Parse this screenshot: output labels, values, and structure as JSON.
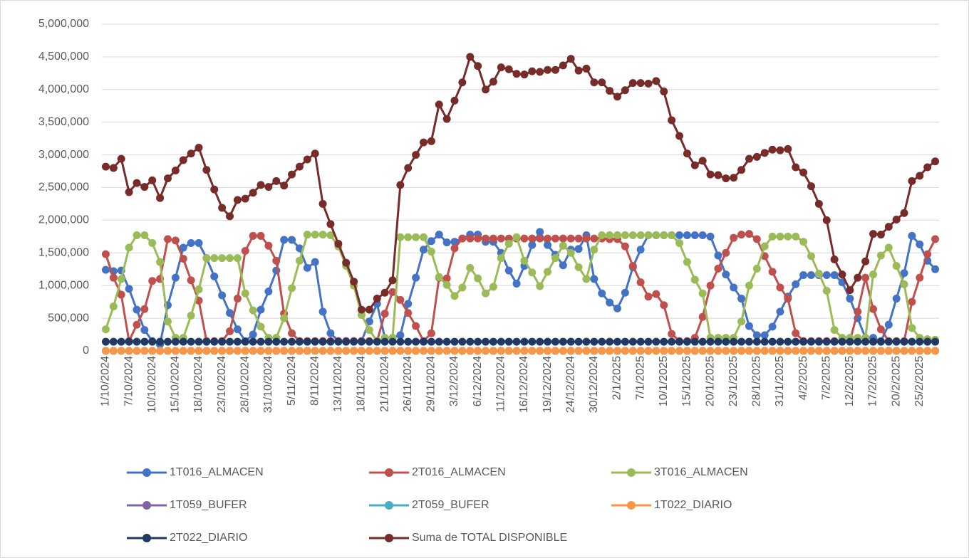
{
  "chart_data": {
    "type": "line",
    "categories": [
      "1/10/2024",
      null,
      null,
      "7/10/2024",
      null,
      null,
      "10/10/2024",
      null,
      null,
      "15/10/2024",
      null,
      null,
      "18/10/2024",
      null,
      null,
      "23/10/2024",
      null,
      null,
      "28/10/2024",
      null,
      null,
      "31/10/2024",
      null,
      null,
      "5/11/2024",
      null,
      null,
      "8/11/2024",
      null,
      null,
      "13/11/2024",
      null,
      null,
      "18/11/2024",
      null,
      null,
      "21/11/2024",
      null,
      null,
      "26/11/2024",
      null,
      null,
      "29/11/2024",
      null,
      null,
      "3/12/2024",
      null,
      null,
      "6/12/2024",
      null,
      null,
      "11/12/2024",
      null,
      null,
      "16/12/2024",
      null,
      null,
      "19/12/2024",
      null,
      null,
      "24/12/2024",
      null,
      null,
      "30/12/2024",
      null,
      null,
      "2/1/2025",
      null,
      null,
      "7/1/2025",
      null,
      null,
      "10/1/2025",
      null,
      null,
      "15/1/2025",
      null,
      null,
      "20/1/2025",
      null,
      null,
      "23/1/2025",
      null,
      null,
      "28/1/2025",
      null,
      null,
      "31/1/2025",
      null,
      null,
      "4/2/2025",
      null,
      null,
      "7/2/2025",
      null,
      null,
      "12/2/2025",
      null,
      null,
      "17/2/2025",
      null,
      null,
      "20/2/2025",
      null,
      null,
      "25/2/2025",
      null,
      null
    ],
    "series": [
      {
        "name": "1T016_ALMACEN",
        "color": "#4472c4",
        "values": [
          1240000,
          1220000,
          1230000,
          950000,
          630000,
          320000,
          150000,
          100000,
          700000,
          1120000,
          1580000,
          1650000,
          1650000,
          1420000,
          1140000,
          850000,
          580000,
          330000,
          150000,
          250000,
          630000,
          910000,
          1230000,
          1700000,
          1700000,
          1570000,
          1270000,
          1360000,
          600000,
          270000,
          150000,
          150000,
          150000,
          150000,
          450000,
          720000,
          200000,
          200000,
          240000,
          720000,
          1120000,
          1550000,
          1680000,
          1780000,
          1660000,
          1670000,
          1720000,
          1780000,
          1780000,
          1670000,
          1670000,
          1500000,
          1230000,
          1030000,
          1300000,
          1620000,
          1820000,
          1620000,
          1470000,
          1310000,
          1550000,
          1560000,
          1770000,
          1100000,
          880000,
          740000,
          650000,
          890000,
          1280000,
          1550000,
          1770000,
          1770000,
          1770000,
          1770000,
          1770000,
          1770000,
          1770000,
          1770000,
          1750000,
          1460000,
          1170000,
          970000,
          800000,
          380000,
          240000,
          240000,
          370000,
          600000,
          830000,
          1020000,
          1160000,
          1160000,
          1160000,
          1160000,
          1160000,
          1050000,
          800000,
          500000,
          200000,
          200000,
          150000,
          400000,
          800000,
          1190000,
          1760000,
          1630000,
          1380000,
          1250000
        ]
      },
      {
        "name": "2T016_ALMACEN",
        "color": "#c0504d",
        "values": [
          1480000,
          1120000,
          860000,
          150000,
          400000,
          640000,
          1070000,
          1100000,
          1710000,
          1690000,
          1410000,
          1080000,
          770000,
          150000,
          150000,
          150000,
          300000,
          800000,
          1530000,
          1760000,
          1760000,
          1610000,
          1380000,
          570000,
          270000,
          150000,
          150000,
          150000,
          150000,
          150000,
          150000,
          150000,
          150000,
          150000,
          150000,
          150000,
          570000,
          900000,
          780000,
          580000,
          380000,
          150000,
          270000,
          1120000,
          1110000,
          1570000,
          1720000,
          1720000,
          1720000,
          1720000,
          1720000,
          1720000,
          1720000,
          1720000,
          1720000,
          1720000,
          1720000,
          1720000,
          1720000,
          1720000,
          1720000,
          1720000,
          1720000,
          1720000,
          1720000,
          1710000,
          1710000,
          1600000,
          1300000,
          1050000,
          830000,
          870000,
          700000,
          260000,
          150000,
          150000,
          200000,
          520000,
          1000000,
          1260000,
          1500000,
          1730000,
          1780000,
          1790000,
          1710000,
          1450000,
          1210000,
          970000,
          800000,
          270000,
          150000,
          150000,
          150000,
          150000,
          150000,
          150000,
          150000,
          600000,
          1120000,
          640000,
          330000,
          150000,
          150000,
          150000,
          750000,
          1120000,
          1480000,
          1710000
        ]
      },
      {
        "name": "3T016_ALMACEN",
        "color": "#9bbb59",
        "values": [
          330000,
          680000,
          1100000,
          1580000,
          1770000,
          1770000,
          1650000,
          1360000,
          450000,
          200000,
          200000,
          540000,
          940000,
          1420000,
          1420000,
          1420000,
          1420000,
          1420000,
          880000,
          620000,
          370000,
          200000,
          200000,
          500000,
          960000,
          1380000,
          1780000,
          1780000,
          1780000,
          1770000,
          1600000,
          1300000,
          1000000,
          550000,
          320000,
          150000,
          200000,
          200000,
          1740000,
          1740000,
          1740000,
          1740000,
          1520000,
          1130000,
          1010000,
          840000,
          970000,
          1270000,
          1110000,
          880000,
          980000,
          1420000,
          1640000,
          1740000,
          1380000,
          1200000,
          990000,
          1210000,
          1420000,
          1610000,
          1500000,
          1280000,
          1100000,
          1550000,
          1770000,
          1770000,
          1770000,
          1770000,
          1770000,
          1770000,
          1770000,
          1770000,
          1770000,
          1770000,
          1650000,
          1360000,
          1090000,
          880000,
          200000,
          200000,
          200000,
          200000,
          450000,
          1000000,
          1260000,
          1600000,
          1750000,
          1750000,
          1750000,
          1750000,
          1670000,
          1450000,
          1180000,
          920000,
          320000,
          200000,
          200000,
          200000,
          200000,
          1170000,
          1460000,
          1580000,
          1300000,
          1020000,
          350000,
          200000,
          180000,
          170000
        ]
      },
      {
        "name": "1T059_BUFER",
        "color": "#8064a2",
        "values": [
          0,
          0,
          0,
          0,
          0,
          0,
          0,
          0,
          0,
          0,
          0,
          0,
          0,
          0,
          0,
          0,
          0,
          0,
          0,
          0,
          0,
          0,
          0,
          0,
          0,
          0,
          0,
          0,
          0,
          0,
          0,
          0,
          0,
          0,
          0,
          0,
          0,
          0,
          0,
          0,
          0,
          0,
          0,
          0,
          0,
          0,
          0,
          0,
          0,
          0,
          0,
          0,
          0,
          0,
          0,
          0,
          0,
          0,
          0,
          0,
          0,
          0,
          0,
          0,
          0,
          0,
          0,
          0,
          0,
          0,
          0,
          0,
          0,
          0,
          0,
          0,
          0,
          0,
          0,
          0,
          0,
          0,
          0,
          0,
          0,
          0,
          0,
          0,
          0,
          0,
          0,
          0,
          0,
          0,
          0,
          0,
          0,
          0,
          0,
          0,
          0,
          0,
          0,
          0,
          0,
          0,
          0,
          0
        ]
      },
      {
        "name": "2T059_BUFER",
        "color": "#4bacc6",
        "values": [
          0,
          0,
          0,
          0,
          0,
          0,
          0,
          0,
          0,
          0,
          0,
          0,
          0,
          0,
          0,
          0,
          0,
          0,
          0,
          0,
          0,
          0,
          0,
          0,
          0,
          0,
          0,
          0,
          0,
          0,
          0,
          0,
          0,
          0,
          0,
          0,
          0,
          0,
          0,
          0,
          0,
          0,
          0,
          0,
          0,
          0,
          0,
          0,
          0,
          0,
          0,
          0,
          0,
          0,
          0,
          0,
          0,
          0,
          0,
          0,
          0,
          0,
          0,
          0,
          0,
          0,
          0,
          0,
          0,
          0,
          0,
          0,
          0,
          0,
          0,
          0,
          0,
          0,
          0,
          0,
          0,
          0,
          0,
          0,
          0,
          0,
          0,
          0,
          0,
          0,
          0,
          0,
          0,
          0,
          0,
          0,
          0,
          0,
          0,
          0,
          0,
          0,
          0,
          0,
          0,
          0,
          0,
          0
        ]
      },
      {
        "name": "2T022_DIARIO",
        "color": "#1f3864",
        "values": [
          140000,
          140000,
          140000,
          140000,
          140000,
          140000,
          140000,
          140000,
          140000,
          140000,
          140000,
          140000,
          140000,
          140000,
          140000,
          140000,
          140000,
          140000,
          140000,
          140000,
          140000,
          140000,
          140000,
          140000,
          140000,
          140000,
          140000,
          140000,
          140000,
          140000,
          140000,
          140000,
          140000,
          140000,
          140000,
          140000,
          140000,
          140000,
          140000,
          140000,
          140000,
          140000,
          140000,
          140000,
          140000,
          140000,
          140000,
          140000,
          140000,
          140000,
          140000,
          140000,
          140000,
          140000,
          140000,
          140000,
          140000,
          140000,
          140000,
          140000,
          140000,
          140000,
          140000,
          140000,
          140000,
          140000,
          140000,
          140000,
          140000,
          140000,
          140000,
          140000,
          140000,
          140000,
          140000,
          140000,
          140000,
          140000,
          140000,
          140000,
          140000,
          140000,
          140000,
          140000,
          140000,
          140000,
          140000,
          140000,
          140000,
          140000,
          140000,
          140000,
          140000,
          140000,
          140000,
          140000,
          140000,
          140000,
          140000,
          140000,
          140000,
          140000,
          140000,
          140000,
          140000,
          140000,
          140000,
          140000
        ]
      },
      {
        "name": "1T022_DIARIO",
        "color": "#f79646",
        "values": [
          0,
          0,
          0,
          0,
          0,
          0,
          0,
          0,
          0,
          0,
          0,
          0,
          0,
          0,
          0,
          0,
          0,
          0,
          0,
          0,
          0,
          0,
          0,
          0,
          0,
          0,
          0,
          0,
          0,
          0,
          0,
          0,
          0,
          0,
          0,
          0,
          0,
          0,
          0,
          0,
          0,
          0,
          0,
          0,
          0,
          0,
          0,
          0,
          0,
          0,
          0,
          0,
          0,
          0,
          0,
          0,
          0,
          0,
          0,
          0,
          0,
          0,
          0,
          0,
          0,
          0,
          0,
          0,
          0,
          0,
          0,
          0,
          0,
          0,
          0,
          0,
          0,
          0,
          0,
          0,
          0,
          0,
          0,
          0,
          0,
          0,
          0,
          0,
          0,
          0,
          0,
          0,
          0,
          0,
          0,
          0,
          0,
          0,
          0,
          0,
          0,
          0,
          0,
          0,
          0,
          0,
          0,
          0
        ]
      },
      {
        "name": "Suma de TOTAL DISPONIBLE",
        "color": "#772c2a",
        "values": [
          2820000,
          2800000,
          2940000,
          2430000,
          2570000,
          2510000,
          2610000,
          2340000,
          2640000,
          2760000,
          2920000,
          3020000,
          3110000,
          2770000,
          2470000,
          2190000,
          2060000,
          2310000,
          2330000,
          2420000,
          2540000,
          2510000,
          2600000,
          2530000,
          2700000,
          2820000,
          2930000,
          3020000,
          2250000,
          1940000,
          1640000,
          1350000,
          1060000,
          630000,
          630000,
          800000,
          890000,
          1080000,
          2540000,
          2800000,
          3000000,
          3190000,
          3210000,
          3770000,
          3550000,
          3830000,
          4110000,
          4500000,
          4360000,
          4000000,
          4120000,
          4340000,
          4310000,
          4240000,
          4230000,
          4280000,
          4270000,
          4300000,
          4300000,
          4370000,
          4470000,
          4290000,
          4320000,
          4110000,
          4110000,
          3980000,
          3890000,
          3990000,
          4100000,
          4100000,
          4090000,
          4130000,
          3970000,
          3530000,
          3290000,
          3020000,
          2840000,
          2910000,
          2700000,
          2690000,
          2640000,
          2650000,
          2770000,
          2940000,
          2970000,
          3030000,
          3080000,
          3070000,
          3090000,
          2810000,
          2730000,
          2520000,
          2250000,
          2000000,
          1400000,
          1170000,
          930000,
          1120000,
          1370000,
          1790000,
          1780000,
          1900000,
          2010000,
          2110000,
          2600000,
          2680000,
          2810000,
          2900000
        ]
      }
    ],
    "ylim": [
      0,
      5000000
    ],
    "yticks": [
      0,
      {
        "value": 500000,
        "label": "500,000"
      },
      {
        "value": 1000000,
        "label": "1,000,000"
      },
      {
        "value": 1500000,
        "label": "1,500,000"
      },
      {
        "value": 2000000,
        "label": "2,000,000"
      },
      {
        "value": 2500000,
        "label": "2,500,000"
      },
      {
        "value": 3000000,
        "label": "3,000,000"
      },
      {
        "value": 3500000,
        "label": "3,500,000"
      },
      {
        "value": 4000000,
        "label": "4,000,000"
      },
      {
        "value": 4500000,
        "label": "4,500,000"
      },
      {
        "value": 5000000,
        "label": "5,000,000"
      }
    ],
    "grid": true,
    "legend": "bottom"
  }
}
